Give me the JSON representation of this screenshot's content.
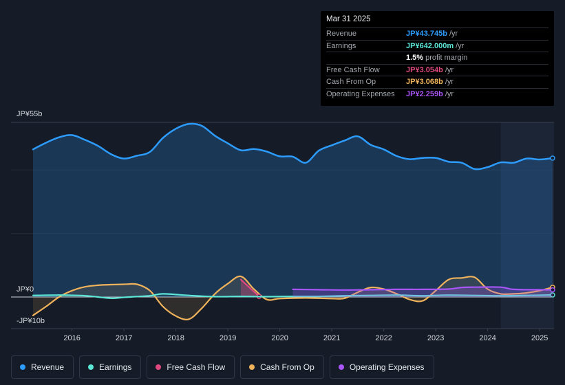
{
  "tooltip": {
    "date": "Mar 31 2025",
    "rows": [
      {
        "label": "Revenue",
        "value": "JP¥43.745b",
        "unit": "/yr",
        "color": "#2d9cff"
      },
      {
        "label": "Earnings",
        "value": "JP¥642.000m",
        "unit": "/yr",
        "color": "#5ce6d6"
      },
      {
        "label": "",
        "value": "1.5%",
        "unit": "profit margin",
        "color": "#ffffff"
      },
      {
        "label": "Free Cash Flow",
        "value": "JP¥3.054b",
        "unit": "/yr",
        "color": "#e0497f"
      },
      {
        "label": "Cash From Op",
        "value": "JP¥3.068b",
        "unit": "/yr",
        "color": "#f0b35b"
      },
      {
        "label": "Operating Expenses",
        "value": "JP¥2.259b",
        "unit": "/yr",
        "color": "#a855f7"
      }
    ]
  },
  "legend": [
    {
      "label": "Revenue",
      "color": "#2d9cff"
    },
    {
      "label": "Earnings",
      "color": "#5ce6d6"
    },
    {
      "label": "Free Cash Flow",
      "color": "#e0497f"
    },
    {
      "label": "Cash From Op",
      "color": "#f0b35b"
    },
    {
      "label": "Operating Expenses",
      "color": "#a855f7"
    }
  ],
  "chart_data": {
    "type": "line",
    "title": "",
    "ylabels": {
      "top": "JP¥55b",
      "zero": "JP¥0",
      "bottom": "-JP¥10b"
    },
    "ylim": [
      -10,
      55
    ],
    "xlim": [
      2015.25,
      2025.25
    ],
    "xticks": [
      "2016",
      "2017",
      "2018",
      "2019",
      "2020",
      "2021",
      "2022",
      "2023",
      "2024",
      "2025"
    ],
    "highlight_start": 2024.25,
    "series": [
      {
        "name": "Revenue",
        "color": "#2d9cff",
        "points": [
          [
            2015.25,
            46.5
          ],
          [
            2015.5,
            48.6
          ],
          [
            2015.75,
            50.3
          ],
          [
            2016.0,
            51.0
          ],
          [
            2016.25,
            49.5
          ],
          [
            2016.5,
            47.6
          ],
          [
            2016.75,
            45.0
          ],
          [
            2017.0,
            43.6
          ],
          [
            2017.25,
            44.5
          ],
          [
            2017.5,
            45.7
          ],
          [
            2017.75,
            50.1
          ],
          [
            2018.0,
            53.0
          ],
          [
            2018.25,
            54.5
          ],
          [
            2018.5,
            53.9
          ],
          [
            2018.75,
            50.8
          ],
          [
            2019.0,
            48.4
          ],
          [
            2019.25,
            46.2
          ],
          [
            2019.5,
            46.6
          ],
          [
            2019.75,
            45.8
          ],
          [
            2020.0,
            44.3
          ],
          [
            2020.25,
            44.2
          ],
          [
            2020.5,
            42.3
          ],
          [
            2020.75,
            46.1
          ],
          [
            2021.0,
            47.8
          ],
          [
            2021.25,
            49.3
          ],
          [
            2021.5,
            50.6
          ],
          [
            2021.75,
            47.9
          ],
          [
            2022.0,
            46.5
          ],
          [
            2022.25,
            44.4
          ],
          [
            2022.5,
            43.4
          ],
          [
            2022.75,
            43.8
          ],
          [
            2023.0,
            43.8
          ],
          [
            2023.25,
            42.6
          ],
          [
            2023.5,
            42.3
          ],
          [
            2023.75,
            40.3
          ],
          [
            2024.0,
            40.9
          ],
          [
            2024.25,
            42.4
          ],
          [
            2024.5,
            42.3
          ],
          [
            2024.75,
            43.6
          ],
          [
            2025.0,
            43.3
          ],
          [
            2025.25,
            43.745
          ]
        ]
      },
      {
        "name": "Earnings",
        "color": "#5ce6d6",
        "points": [
          [
            2015.25,
            0.5
          ],
          [
            2015.75,
            0.6
          ],
          [
            2016.25,
            0.4
          ],
          [
            2016.75,
            -0.4
          ],
          [
            2017.0,
            -0.1
          ],
          [
            2017.5,
            0.4
          ],
          [
            2017.75,
            1.0
          ],
          [
            2018.25,
            0.5
          ],
          [
            2018.75,
            0.1
          ],
          [
            2019.25,
            0.2
          ],
          [
            2019.75,
            0.1
          ],
          [
            2020.25,
            0.2
          ],
          [
            2020.75,
            0.2
          ],
          [
            2021.25,
            0.4
          ],
          [
            2021.75,
            0.5
          ],
          [
            2022.25,
            0.6
          ],
          [
            2022.75,
            0.4
          ],
          [
            2023.25,
            0.6
          ],
          [
            2023.75,
            0.5
          ],
          [
            2024.25,
            0.4
          ],
          [
            2024.75,
            0.5
          ],
          [
            2025.25,
            0.642
          ]
        ]
      },
      {
        "name": "Free Cash Flow",
        "color": "#e0497f",
        "fill": "#5a1f30",
        "points": [
          [
            2019.25,
            5.5
          ],
          [
            2019.6,
            0.2
          ]
        ]
      },
      {
        "name": "Cash From Op",
        "color": "#f0b35b",
        "points": [
          [
            2015.25,
            -5.8
          ],
          [
            2015.5,
            -3.0
          ],
          [
            2015.75,
            0.0
          ],
          [
            2016.0,
            2.0
          ],
          [
            2016.25,
            3.2
          ],
          [
            2016.5,
            3.7
          ],
          [
            2016.75,
            3.9
          ],
          [
            2017.0,
            4.0
          ],
          [
            2017.25,
            4.0
          ],
          [
            2017.5,
            2.0
          ],
          [
            2017.75,
            -3.0
          ],
          [
            2018.0,
            -6.0
          ],
          [
            2018.25,
            -7.0
          ],
          [
            2018.5,
            -3.5
          ],
          [
            2018.75,
            1.0
          ],
          [
            2019.0,
            4.2
          ],
          [
            2019.25,
            6.5
          ],
          [
            2019.5,
            2.5
          ],
          [
            2019.75,
            -0.8
          ],
          [
            2020.0,
            -0.5
          ],
          [
            2020.5,
            -0.3
          ],
          [
            2021.0,
            -0.5
          ],
          [
            2021.25,
            -0.4
          ],
          [
            2021.5,
            1.5
          ],
          [
            2021.75,
            3.0
          ],
          [
            2022.0,
            2.5
          ],
          [
            2022.25,
            1.0
          ],
          [
            2022.5,
            -0.8
          ],
          [
            2022.75,
            -1.2
          ],
          [
            2023.0,
            2.0
          ],
          [
            2023.25,
            5.5
          ],
          [
            2023.5,
            6.0
          ],
          [
            2023.75,
            6.2
          ],
          [
            2024.0,
            2.5
          ],
          [
            2024.25,
            1.0
          ],
          [
            2024.5,
            1.0
          ],
          [
            2024.75,
            1.3
          ],
          [
            2025.0,
            2.0
          ],
          [
            2025.25,
            3.068
          ]
        ]
      },
      {
        "name": "Operating Expenses",
        "color": "#a855f7",
        "points": [
          [
            2020.25,
            2.4
          ],
          [
            2020.75,
            2.3
          ],
          [
            2021.25,
            2.2
          ],
          [
            2021.75,
            2.3
          ],
          [
            2022.25,
            2.4
          ],
          [
            2022.75,
            2.4
          ],
          [
            2023.25,
            2.5
          ],
          [
            2023.5,
            3.0
          ],
          [
            2023.75,
            3.1
          ],
          [
            2024.25,
            3.1
          ],
          [
            2024.5,
            2.4
          ],
          [
            2025.0,
            2.3
          ],
          [
            2025.25,
            2.259
          ]
        ]
      }
    ]
  }
}
